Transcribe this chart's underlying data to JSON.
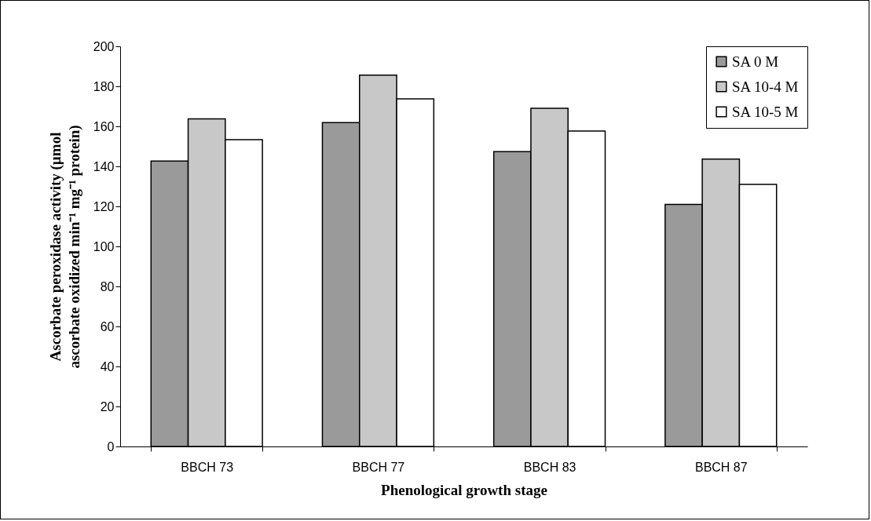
{
  "chart_data": {
    "type": "bar",
    "xlabel": "Phenological growth stage",
    "ylabel": "Ascorbate peroxidase activity (µmol\nascorbate oxidized min⁻¹ mg⁻¹ protein)",
    "categories": [
      "BBCH 73",
      "BBCH 77",
      "BBCH 83",
      "BBCH 87"
    ],
    "series": [
      {
        "name": "SA   0   M",
        "color": "#9a9a9a",
        "values": [
          142.6,
          161.9,
          147.4,
          121
        ]
      },
      {
        "name": "SA 10-4 M",
        "color": "#c8c8c8",
        "values": [
          163.7,
          185.6,
          169,
          143.6
        ]
      },
      {
        "name": "SA 10-5 M",
        "color": "#ffffff",
        "values": [
          153.3,
          173.7,
          157.6,
          131
        ]
      }
    ],
    "ylim": [
      0,
      200
    ],
    "yticks": [
      0,
      20,
      40,
      60,
      80,
      100,
      120,
      140,
      160,
      180,
      200
    ],
    "grid": false,
    "legend": "top right"
  }
}
